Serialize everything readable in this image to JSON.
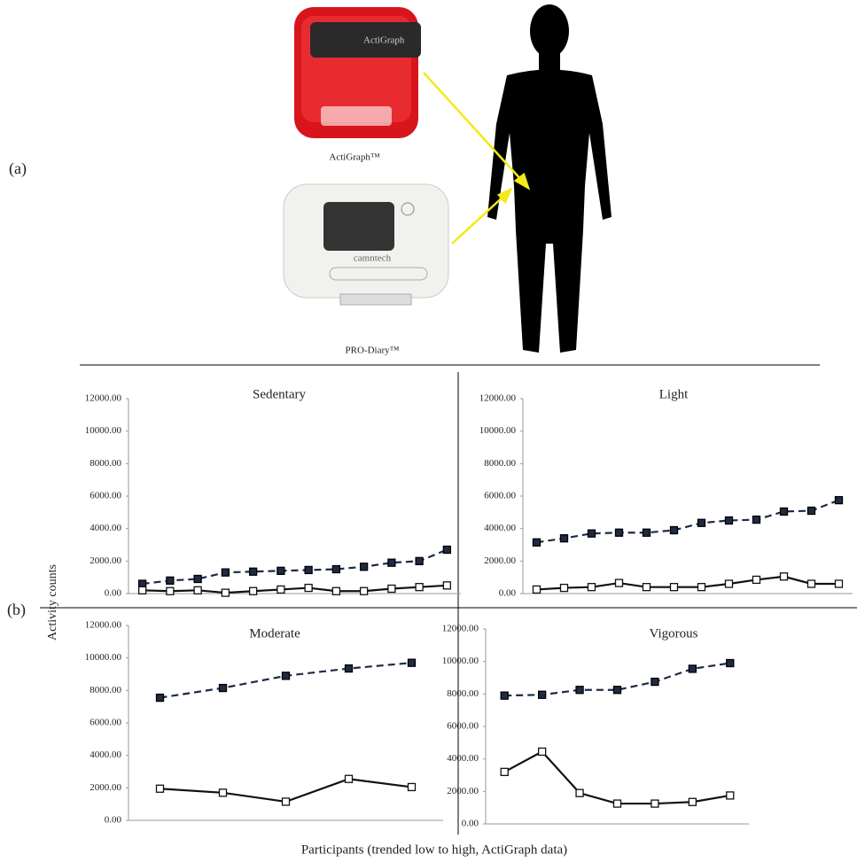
{
  "figure": {
    "label_a": "(a)",
    "label_b": "(b)",
    "device_1": "ActiGraph™",
    "device_1_brand": "ActiGraph",
    "device_2": "PRO-Diary™",
    "device_2_brand": "camntech",
    "y_label": "Activity counts",
    "x_label": "Participants (trended low to high, ActiGraph data)"
  },
  "chart_data": [
    {
      "type": "line",
      "title": "Sedentary",
      "series": [
        {
          "color": "#1f2a44",
          "dash": true,
          "values": [
            600,
            800,
            900,
            1300,
            1350,
            1400,
            1450,
            1500,
            1650,
            1900,
            2000,
            2700
          ]
        },
        {
          "color": "#111111",
          "dash": false,
          "values": [
            200,
            150,
            200,
            50,
            150,
            250,
            350,
            150,
            150,
            300,
            400,
            500
          ]
        }
      ],
      "ylim": [
        0,
        12000
      ],
      "yticks": [
        {
          "value": 0,
          "label": "0.00"
        },
        {
          "value": 2000,
          "label": "2000.00"
        },
        {
          "value": 4000,
          "label": "4000.00"
        },
        {
          "value": 6000,
          "label": "6000.00"
        },
        {
          "value": 8000,
          "label": "8000.00"
        },
        {
          "value": 10000,
          "label": "10000.00"
        },
        {
          "value": 12000,
          "label": "12000.00"
        }
      ]
    },
    {
      "type": "line",
      "title": "Light",
      "series": [
        {
          "color": "#1f2a44",
          "dash": true,
          "values": [
            3150,
            3400,
            3700,
            3750,
            3750,
            3900,
            4350,
            4500,
            4550,
            5050,
            5100,
            5750
          ]
        },
        {
          "color": "#111111",
          "dash": false,
          "values": [
            250,
            350,
            400,
            650,
            400,
            400,
            400,
            600,
            850,
            1050,
            600,
            600
          ]
        }
      ],
      "ylim": [
        0,
        12000
      ],
      "yticks": [
        {
          "value": 0,
          "label": "0.00"
        },
        {
          "value": 2000,
          "label": "2000.00"
        },
        {
          "value": 4000,
          "label": "4000.00"
        },
        {
          "value": 6000,
          "label": "6000.00"
        },
        {
          "value": 8000,
          "label": "8000.00"
        },
        {
          "value": 10000,
          "label": "10000.00"
        },
        {
          "value": 12000,
          "label": "12000.00"
        }
      ]
    },
    {
      "type": "line",
      "title": "Moderate",
      "series": [
        {
          "color": "#1f2a44",
          "dash": true,
          "values": [
            7550,
            8150,
            8900,
            9350,
            9700
          ]
        },
        {
          "color": "#111111",
          "dash": false,
          "values": [
            1950,
            1700,
            1150,
            2550,
            2050
          ]
        }
      ],
      "ylim": [
        0,
        12000
      ],
      "yticks": [
        {
          "value": 0,
          "label": "0.00"
        },
        {
          "value": 2000,
          "label": "2000.00"
        },
        {
          "value": 4000,
          "label": "4000.00"
        },
        {
          "value": 6000,
          "label": "6000.00"
        },
        {
          "value": 8000,
          "label": "8000.00"
        },
        {
          "value": 10000,
          "label": "10000.00"
        },
        {
          "value": 12000,
          "label": "12000.00"
        }
      ]
    },
    {
      "type": "line",
      "title": "Vigorous",
      "series": [
        {
          "color": "#1f2a44",
          "dash": true,
          "values": [
            7900,
            7950,
            8250,
            8250,
            8750,
            9550,
            9900
          ]
        },
        {
          "color": "#111111",
          "dash": false,
          "values": [
            3200,
            4450,
            1900,
            1250,
            1250,
            1350,
            1750
          ]
        }
      ],
      "ylim": [
        0,
        12000
      ],
      "yticks": [
        {
          "value": 0,
          "label": "0.00"
        },
        {
          "value": 2000,
          "label": "2000.00"
        },
        {
          "value": 4000,
          "label": "4000.00"
        },
        {
          "value": 6000,
          "label": "6000.00"
        },
        {
          "value": 8000,
          "label": "8000.00"
        },
        {
          "value": 10000,
          "label": "10000.00"
        },
        {
          "value": 12000,
          "label": "12000.00"
        }
      ]
    }
  ]
}
